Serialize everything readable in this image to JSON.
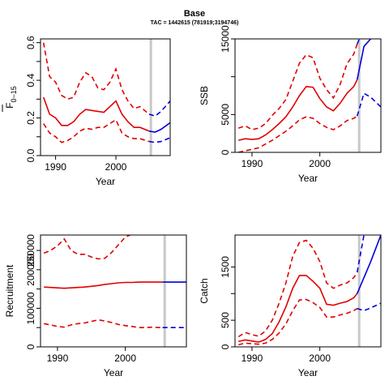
{
  "figure": {
    "title": "Base",
    "subtitle": "TAC = 1442615 (781919;3194746)"
  },
  "colors": {
    "historic": "#e00000",
    "projection": "#0000dd",
    "divider": "#c8c8c8"
  },
  "chart_data": [
    {
      "id": "fbar",
      "type": "line",
      "xlabel": "Year",
      "ylabel": "F̄0–15",
      "ylabel_main": "F",
      "ylabel_sub": "0−15",
      "xlim": [
        1987.5,
        2009
      ],
      "ylim": [
        0,
        0.62
      ],
      "xticks": [
        1990,
        2000
      ],
      "yticks": [
        0.0,
        0.1,
        0.2,
        0.3,
        0.4,
        0.5,
        0.6
      ],
      "ytick_labels": [
        "0.0",
        "",
        "0.2",
        "",
        "0.4",
        "",
        "0.6"
      ],
      "divider_x": 2005.8,
      "historic": {
        "x": [
          1988,
          1989,
          1990,
          1991,
          1992,
          1993,
          1994,
          1995,
          1996,
          1997,
          1998,
          1999,
          2000,
          2001,
          2002,
          2003,
          2004,
          2005.5
        ],
        "mid": [
          0.31,
          0.22,
          0.2,
          0.16,
          0.16,
          0.18,
          0.22,
          0.245,
          0.24,
          0.235,
          0.23,
          0.26,
          0.29,
          0.22,
          0.18,
          0.15,
          0.15,
          0.13
        ],
        "upper": [
          0.6,
          0.42,
          0.39,
          0.32,
          0.3,
          0.31,
          0.39,
          0.44,
          0.42,
          0.36,
          0.35,
          0.39,
          0.46,
          0.35,
          0.29,
          0.25,
          0.26,
          0.22
        ],
        "lower": [
          0.17,
          0.12,
          0.1,
          0.07,
          0.08,
          0.1,
          0.13,
          0.145,
          0.14,
          0.15,
          0.15,
          0.17,
          0.19,
          0.12,
          0.1,
          0.09,
          0.09,
          0.075
        ]
      },
      "projection": {
        "x": [
          2005.5,
          2006.5,
          2007.5,
          2009
        ],
        "mid": [
          0.13,
          0.125,
          0.14,
          0.175
        ],
        "upper": [
          0.22,
          0.21,
          0.235,
          0.29
        ],
        "lower": [
          0.075,
          0.07,
          0.075,
          0.095
        ]
      }
    },
    {
      "id": "ssb",
      "type": "line",
      "xlabel": "Year",
      "ylabel": "SSB",
      "xlim": [
        1987.5,
        2009
      ],
      "ylim": [
        0,
        15000
      ],
      "xticks": [
        1990,
        2000
      ],
      "yticks": [
        0,
        5000,
        10000,
        15000
      ],
      "ytick_labels": [
        "0",
        "5000",
        "",
        "15000"
      ],
      "divider_x": 2005.8,
      "historic": {
        "x": [
          1988,
          1989,
          1990,
          1991,
          1992,
          1993,
          1994,
          1995,
          1996,
          1997,
          1998,
          1999,
          2000,
          2001,
          2002,
          2003,
          2004,
          2005,
          2005.5
        ],
        "mid": [
          1600,
          1800,
          1700,
          1800,
          2300,
          3000,
          3800,
          4700,
          6000,
          7500,
          8700,
          8600,
          7100,
          6000,
          5500,
          6500,
          7800,
          8700,
          9600
        ],
        "upper": [
          3200,
          3500,
          3000,
          3200,
          3800,
          4900,
          5800,
          7000,
          9400,
          11800,
          12900,
          12500,
          9800,
          8300,
          7200,
          9000,
          11700,
          13000,
          14300
        ],
        "lower": [
          0,
          200,
          400,
          600,
          1100,
          1600,
          2200,
          2800,
          3500,
          4300,
          4700,
          4500,
          3800,
          3300,
          3000,
          3500,
          4200,
          4500,
          4800
        ]
      },
      "projection": {
        "x": [
          2005.5,
          2006.5,
          2007.5,
          2009
        ],
        "mid": [
          9600,
          14000,
          15000,
          15500
        ],
        "upper": [
          14300,
          16500,
          17000,
          17500
        ],
        "lower": [
          4800,
          7800,
          7300,
          6000
        ]
      }
    },
    {
      "id": "recruitment",
      "type": "line",
      "xlabel": "Year",
      "ylabel": "Recruitment",
      "xlim": [
        1987.5,
        2009
      ],
      "ylim": [
        0,
        290000
      ],
      "xticks": [
        1990,
        2000
      ],
      "yticks": [
        0,
        50000,
        100000,
        150000,
        200000,
        250000
      ],
      "ytick_labels": [
        "0",
        "",
        "100000",
        "",
        "200000",
        "250000"
      ],
      "divider_x": 2005.8,
      "historic": {
        "x": [
          1988,
          1989,
          1990,
          1991,
          1992,
          1993,
          1994,
          1995,
          1996,
          1997,
          1998,
          1999,
          2000,
          2001,
          2002,
          2003,
          2004,
          2005,
          2005.5
        ],
        "mid": [
          155000,
          154000,
          153000,
          152000,
          153000,
          154000,
          155000,
          157000,
          159000,
          162000,
          164000,
          166000,
          167000,
          167000,
          168000,
          168000,
          168000,
          168000,
          168000
        ],
        "upper": [
          243000,
          250000,
          262000,
          280000,
          250000,
          240000,
          240000,
          233000,
          228000,
          230000,
          245000,
          265000,
          285000,
          292000,
          318000,
          305000,
          300000,
          312000,
          310000
        ],
        "lower": [
          60000,
          57000,
          53000,
          51000,
          57000,
          60000,
          62000,
          66000,
          70000,
          67000,
          63000,
          58000,
          55000,
          53000,
          50000,
          50000,
          51000,
          50000,
          50000
        ]
      },
      "projection": {
        "x": [
          2005.5,
          2006.5,
          2007.5,
          2009
        ],
        "mid": [
          168000,
          168000,
          168000,
          168000
        ],
        "upper": [
          310000,
          310000,
          312000,
          311000
        ],
        "lower": [
          50000,
          50000,
          50000,
          50000
        ]
      }
    },
    {
      "id": "catch",
      "type": "line",
      "xlabel": "Year",
      "ylabel": "Catch",
      "xlim": [
        1987.5,
        2009
      ],
      "ylim": [
        0,
        2100
      ],
      "xticks": [
        1990,
        2000
      ],
      "yticks": [
        0,
        500,
        1000,
        1500
      ],
      "ytick_labels": [
        "0",
        "500",
        "",
        "1500"
      ],
      "divider_x": 2005.8,
      "historic": {
        "x": [
          1988,
          1989,
          1990,
          1991,
          1992,
          1993,
          1994,
          1995,
          1996,
          1997,
          1998,
          1999,
          2000,
          2001,
          2002,
          2003,
          2004,
          2005,
          2005.5
        ],
        "mid": [
          100,
          130,
          110,
          90,
          140,
          250,
          470,
          750,
          1100,
          1340,
          1340,
          1230,
          1100,
          800,
          780,
          820,
          850,
          920,
          1000
        ],
        "upper": [
          190,
          270,
          230,
          200,
          300,
          500,
          820,
          1200,
          1700,
          1960,
          2000,
          1850,
          1600,
          1200,
          1100,
          1160,
          1200,
          1300,
          1400
        ],
        "lower": [
          40,
          70,
          60,
          50,
          70,
          140,
          260,
          430,
          680,
          880,
          890,
          830,
          740,
          560,
          560,
          600,
          630,
          680,
          720
        ]
      },
      "projection": {
        "x": [
          2005.5,
          2006.5,
          2007.5,
          2009
        ],
        "mid": [
          1000,
          1300,
          1600,
          2100
        ],
        "upper": [
          1400,
          2100,
          2300,
          2600
        ],
        "lower": [
          720,
          680,
          730,
          820
        ]
      }
    }
  ]
}
